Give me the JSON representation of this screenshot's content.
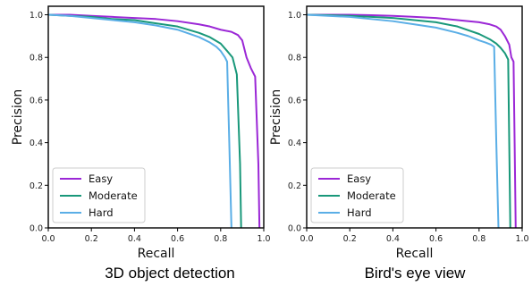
{
  "chart_data": [
    {
      "type": "line",
      "caption": "3D object detection",
      "xlabel": "Recall",
      "ylabel": "Precision",
      "xlim": [
        0,
        1
      ],
      "ylim": [
        0,
        1.04
      ],
      "xticks": [
        "0.0",
        "0.2",
        "0.4",
        "0.6",
        "0.8",
        "1.0"
      ],
      "yticks": [
        "0.0",
        "0.2",
        "0.4",
        "0.6",
        "0.8",
        "1.0"
      ],
      "legend": "lower-left",
      "series": [
        {
          "name": "Easy",
          "color": "#9b27d6",
          "x": [
            0,
            0.1,
            0.2,
            0.3,
            0.4,
            0.5,
            0.6,
            0.7,
            0.75,
            0.8,
            0.85,
            0.88,
            0.9,
            0.92,
            0.94,
            0.95,
            0.96,
            0.975,
            0.98
          ],
          "y": [
            1.0,
            1.0,
            0.995,
            0.99,
            0.985,
            0.98,
            0.97,
            0.955,
            0.945,
            0.93,
            0.92,
            0.905,
            0.88,
            0.8,
            0.75,
            0.73,
            0.71,
            0.3,
            0.0
          ]
        },
        {
          "name": "Moderate",
          "color": "#19987a",
          "x": [
            0,
            0.1,
            0.2,
            0.3,
            0.4,
            0.5,
            0.6,
            0.7,
            0.75,
            0.8,
            0.83,
            0.855,
            0.87,
            0.875,
            0.89,
            0.895
          ],
          "y": [
            1.0,
            0.995,
            0.99,
            0.98,
            0.975,
            0.96,
            0.945,
            0.915,
            0.895,
            0.865,
            0.83,
            0.8,
            0.74,
            0.72,
            0.3,
            0.0
          ]
        },
        {
          "name": "Hard",
          "color": "#5aaee6",
          "x": [
            0,
            0.1,
            0.2,
            0.3,
            0.4,
            0.5,
            0.6,
            0.7,
            0.75,
            0.78,
            0.8,
            0.82,
            0.83,
            0.84,
            0.85
          ],
          "y": [
            1.0,
            0.995,
            0.985,
            0.975,
            0.965,
            0.95,
            0.93,
            0.895,
            0.87,
            0.85,
            0.83,
            0.8,
            0.78,
            0.4,
            0.0
          ]
        }
      ]
    },
    {
      "type": "line",
      "caption": "Bird's eye view",
      "xlabel": "Recall",
      "ylabel": "Precision",
      "xlim": [
        0,
        1
      ],
      "ylim": [
        0,
        1.04
      ],
      "xticks": [
        "0.0",
        "0.2",
        "0.4",
        "0.6",
        "0.8",
        "1.0"
      ],
      "yticks": [
        "0.0",
        "0.2",
        "0.4",
        "0.6",
        "0.8",
        "1.0"
      ],
      "legend": "lower-left",
      "series": [
        {
          "name": "Easy",
          "color": "#9b27d6",
          "x": [
            0,
            0.1,
            0.2,
            0.3,
            0.4,
            0.5,
            0.6,
            0.7,
            0.8,
            0.85,
            0.88,
            0.9,
            0.92,
            0.94,
            0.95,
            0.96,
            0.965,
            0.97
          ],
          "y": [
            1.0,
            1.0,
            1.0,
            0.998,
            0.995,
            0.99,
            0.985,
            0.975,
            0.965,
            0.955,
            0.945,
            0.93,
            0.9,
            0.86,
            0.8,
            0.78,
            0.4,
            0.0
          ]
        },
        {
          "name": "Moderate",
          "color": "#19987a",
          "x": [
            0,
            0.1,
            0.2,
            0.3,
            0.4,
            0.5,
            0.6,
            0.7,
            0.8,
            0.85,
            0.88,
            0.9,
            0.92,
            0.935,
            0.94,
            0.945
          ],
          "y": [
            1.0,
            0.998,
            0.995,
            0.99,
            0.985,
            0.975,
            0.965,
            0.945,
            0.91,
            0.885,
            0.865,
            0.845,
            0.82,
            0.79,
            0.4,
            0.0
          ]
        },
        {
          "name": "Hard",
          "color": "#5aaee6",
          "x": [
            0,
            0.1,
            0.2,
            0.3,
            0.4,
            0.5,
            0.6,
            0.7,
            0.75,
            0.8,
            0.83,
            0.855,
            0.87,
            0.88,
            0.89
          ],
          "y": [
            1.0,
            0.995,
            0.99,
            0.98,
            0.97,
            0.955,
            0.94,
            0.915,
            0.9,
            0.88,
            0.87,
            0.86,
            0.85,
            0.4,
            0.0
          ]
        }
      ]
    }
  ]
}
